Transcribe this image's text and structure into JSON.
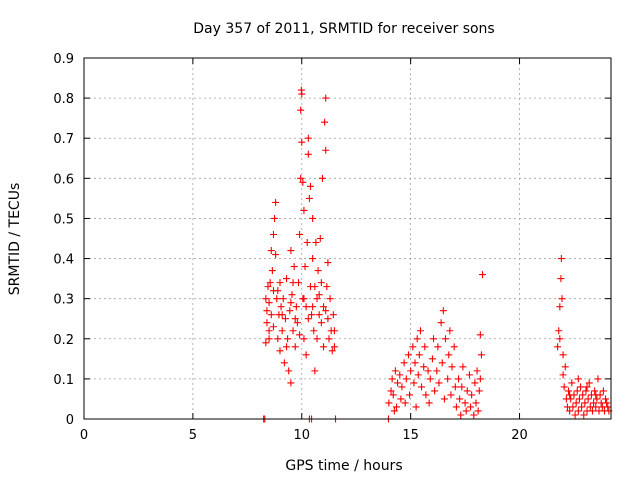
{
  "chart_data": {
    "type": "scatter",
    "title": "Day 357 of 2011, SRMTID for receiver sons",
    "xlabel": "GPS time / hours",
    "ylabel": "SRMTID / TECUs",
    "xlim": [
      0,
      24.2
    ],
    "ylim": [
      0,
      0.9
    ],
    "xticks": [
      0,
      5,
      10,
      15,
      20
    ],
    "xtick_labels": [
      "0",
      "5",
      "10",
      "15",
      "20"
    ],
    "yticks": [
      0,
      0.1,
      0.2,
      0.3,
      0.4,
      0.5,
      0.6,
      0.7,
      0.8,
      0.9
    ],
    "ytick_labels": [
      "0",
      "0.1",
      "0.2",
      "0.3",
      "0.4",
      "0.5",
      "0.6",
      "0.7",
      "0.8",
      "0.9"
    ],
    "grid": true,
    "marker": "plus",
    "colors": {
      "marker": "#ff0000",
      "grid": "#a0a0a0",
      "axes": "#000000"
    },
    "series": [
      {
        "name": "SRMTID",
        "points": [
          [
            8.25,
            0.0
          ],
          [
            8.3,
            0.0
          ],
          [
            10.35,
            0.0
          ],
          [
            10.45,
            0.0
          ],
          [
            11.55,
            0.0
          ],
          [
            13.98,
            0.0
          ],
          [
            8.35,
            0.19
          ],
          [
            8.35,
            0.3
          ],
          [
            8.4,
            0.27
          ],
          [
            8.4,
            0.24
          ],
          [
            8.45,
            0.33
          ],
          [
            8.5,
            0.29
          ],
          [
            8.5,
            0.22
          ],
          [
            8.55,
            0.34
          ],
          [
            8.6,
            0.42
          ],
          [
            8.6,
            0.26
          ],
          [
            8.65,
            0.37
          ],
          [
            8.7,
            0.46
          ],
          [
            8.7,
            0.32
          ],
          [
            8.75,
            0.5
          ],
          [
            8.8,
            0.54
          ],
          [
            8.8,
            0.41
          ],
          [
            8.85,
            0.3
          ],
          [
            8.9,
            0.2
          ],
          [
            8.95,
            0.26
          ],
          [
            9.0,
            0.34
          ],
          [
            9.0,
            0.17
          ],
          [
            9.05,
            0.28
          ],
          [
            9.1,
            0.22
          ],
          [
            9.15,
            0.3
          ],
          [
            9.2,
            0.14
          ],
          [
            9.25,
            0.25
          ],
          [
            9.3,
            0.35
          ],
          [
            9.35,
            0.2
          ],
          [
            9.4,
            0.12
          ],
          [
            9.45,
            0.27
          ],
          [
            9.5,
            0.42
          ],
          [
            9.5,
            0.09
          ],
          [
            9.55,
            0.31
          ],
          [
            9.6,
            0.22
          ],
          [
            9.65,
            0.38
          ],
          [
            9.7,
            0.18
          ],
          [
            9.75,
            0.28
          ],
          [
            9.8,
            0.24
          ],
          [
            9.85,
            0.34
          ],
          [
            9.9,
            0.46
          ],
          [
            9.95,
            0.6
          ],
          [
            9.95,
            0.77
          ],
          [
            9.98,
            0.82
          ],
          [
            10.0,
            0.81
          ],
          [
            10.0,
            0.69
          ],
          [
            10.05,
            0.59
          ],
          [
            10.05,
            0.3
          ],
          [
            10.1,
            0.52
          ],
          [
            10.1,
            0.2
          ],
          [
            10.15,
            0.38
          ],
          [
            10.2,
            0.28
          ],
          [
            10.2,
            0.16
          ],
          [
            10.25,
            0.44
          ],
          [
            10.3,
            0.66
          ],
          [
            10.3,
            0.7
          ],
          [
            10.35,
            0.55
          ],
          [
            10.4,
            0.58
          ],
          [
            10.4,
            0.33
          ],
          [
            10.45,
            0.26
          ],
          [
            10.5,
            0.4
          ],
          [
            10.5,
            0.5
          ],
          [
            10.55,
            0.22
          ],
          [
            10.6,
            0.33
          ],
          [
            10.6,
            0.12
          ],
          [
            10.65,
            0.44
          ],
          [
            10.7,
            0.3
          ],
          [
            10.75,
            0.37
          ],
          [
            10.8,
            0.26
          ],
          [
            10.85,
            0.45
          ],
          [
            10.9,
            0.34
          ],
          [
            10.95,
            0.6
          ],
          [
            11.0,
            0.18
          ],
          [
            11.0,
            0.28
          ],
          [
            11.05,
            0.74
          ],
          [
            11.1,
            0.8
          ],
          [
            11.1,
            0.67
          ],
          [
            11.15,
            0.33
          ],
          [
            11.2,
            0.39
          ],
          [
            11.2,
            0.25
          ],
          [
            11.25,
            0.2
          ],
          [
            11.3,
            0.3
          ],
          [
            11.35,
            0.22
          ],
          [
            11.4,
            0.17
          ],
          [
            11.45,
            0.26
          ],
          [
            11.5,
            0.22
          ],
          [
            11.5,
            0.18
          ],
          [
            8.5,
            0.2
          ],
          [
            8.7,
            0.23
          ],
          [
            8.9,
            0.32
          ],
          [
            9.1,
            0.26
          ],
          [
            9.3,
            0.18
          ],
          [
            9.5,
            0.29
          ],
          [
            9.7,
            0.25
          ],
          [
            9.9,
            0.21
          ],
          [
            10.1,
            0.3
          ],
          [
            10.3,
            0.25
          ],
          [
            10.5,
            0.28
          ],
          [
            10.7,
            0.2
          ],
          [
            10.9,
            0.24
          ],
          [
            11.1,
            0.27
          ],
          [
            9.6,
            0.34
          ],
          [
            10.8,
            0.31
          ],
          [
            14.0,
            0.04
          ],
          [
            14.1,
            0.07
          ],
          [
            14.15,
            0.1
          ],
          [
            14.2,
            0.06
          ],
          [
            14.3,
            0.12
          ],
          [
            14.35,
            0.03
          ],
          [
            14.4,
            0.09
          ],
          [
            14.5,
            0.11
          ],
          [
            14.55,
            0.05
          ],
          [
            14.6,
            0.08
          ],
          [
            14.7,
            0.14
          ],
          [
            14.75,
            0.04
          ],
          [
            14.8,
            0.1
          ],
          [
            14.9,
            0.16
          ],
          [
            14.95,
            0.06
          ],
          [
            15.0,
            0.12
          ],
          [
            15.1,
            0.18
          ],
          [
            15.15,
            0.09
          ],
          [
            15.2,
            0.14
          ],
          [
            15.3,
            0.2
          ],
          [
            15.35,
            0.11
          ],
          [
            15.4,
            0.16
          ],
          [
            15.45,
            0.22
          ],
          [
            15.5,
            0.08
          ],
          [
            15.6,
            0.13
          ],
          [
            15.65,
            0.18
          ],
          [
            15.7,
            0.06
          ],
          [
            15.8,
            0.12
          ],
          [
            15.85,
            0.04
          ],
          [
            15.9,
            0.1
          ],
          [
            16.0,
            0.15
          ],
          [
            16.05,
            0.2
          ],
          [
            16.1,
            0.07
          ],
          [
            16.2,
            0.12
          ],
          [
            16.25,
            0.18
          ],
          [
            16.3,
            0.09
          ],
          [
            16.4,
            0.24
          ],
          [
            16.45,
            0.14
          ],
          [
            16.5,
            0.27
          ],
          [
            16.55,
            0.05
          ],
          [
            16.6,
            0.2
          ],
          [
            16.7,
            0.1
          ],
          [
            16.75,
            0.16
          ],
          [
            16.8,
            0.22
          ],
          [
            16.85,
            0.06
          ],
          [
            16.9,
            0.13
          ],
          [
            17.0,
            0.18
          ],
          [
            17.05,
            0.08
          ],
          [
            17.1,
            0.03
          ],
          [
            17.2,
            0.1
          ],
          [
            17.25,
            0.05
          ],
          [
            17.3,
            0.01
          ],
          [
            17.35,
            0.08
          ],
          [
            17.4,
            0.13
          ],
          [
            17.5,
            0.04
          ],
          [
            17.55,
            0.02
          ],
          [
            17.6,
            0.07
          ],
          [
            17.7,
            0.11
          ],
          [
            17.75,
            0.03
          ],
          [
            17.8,
            0.06
          ],
          [
            17.9,
            0.01
          ],
          [
            17.95,
            0.09
          ],
          [
            18.0,
            0.04
          ],
          [
            18.05,
            0.12
          ],
          [
            18.1,
            0.02
          ],
          [
            18.15,
            0.07
          ],
          [
            18.2,
            0.1
          ],
          [
            18.25,
            0.16
          ],
          [
            18.3,
            0.36
          ],
          [
            18.2,
            0.21
          ],
          [
            14.25,
            0.02
          ],
          [
            15.25,
            0.03
          ],
          [
            21.75,
            0.18
          ],
          [
            21.8,
            0.22
          ],
          [
            21.85,
            0.28
          ],
          [
            21.9,
            0.35
          ],
          [
            21.92,
            0.4
          ],
          [
            21.95,
            0.3
          ],
          [
            22.0,
            0.16
          ],
          [
            22.0,
            0.11
          ],
          [
            22.05,
            0.08
          ],
          [
            22.1,
            0.13
          ],
          [
            22.15,
            0.05
          ],
          [
            22.2,
            0.03
          ],
          [
            22.25,
            0.07
          ],
          [
            22.3,
            0.02
          ],
          [
            22.35,
            0.05
          ],
          [
            22.4,
            0.09
          ],
          [
            22.45,
            0.03
          ],
          [
            22.5,
            0.06
          ],
          [
            22.55,
            0.01
          ],
          [
            22.6,
            0.04
          ],
          [
            22.65,
            0.07
          ],
          [
            22.7,
            0.02
          ],
          [
            22.75,
            0.05
          ],
          [
            22.8,
            0.08
          ],
          [
            22.85,
            0.03
          ],
          [
            22.9,
            0.06
          ],
          [
            22.95,
            0.01
          ],
          [
            23.0,
            0.04
          ],
          [
            23.05,
            0.07
          ],
          [
            23.1,
            0.02
          ],
          [
            23.15,
            0.05
          ],
          [
            23.2,
            0.09
          ],
          [
            23.25,
            0.03
          ],
          [
            23.3,
            0.06
          ],
          [
            23.35,
            0.02
          ],
          [
            23.4,
            0.04
          ],
          [
            23.45,
            0.07
          ],
          [
            23.5,
            0.03
          ],
          [
            23.55,
            0.05
          ],
          [
            23.6,
            0.1
          ],
          [
            23.65,
            0.02
          ],
          [
            23.7,
            0.06
          ],
          [
            23.75,
            0.04
          ],
          [
            23.8,
            0.03
          ],
          [
            23.85,
            0.07
          ],
          [
            23.9,
            0.02
          ],
          [
            23.95,
            0.05
          ],
          [
            24.0,
            0.04
          ],
          [
            24.05,
            0.03
          ],
          [
            24.1,
            0.02
          ],
          [
            22.3,
            0.06
          ],
          [
            22.7,
            0.1
          ],
          [
            23.1,
            0.08
          ],
          [
            23.5,
            0.06
          ],
          [
            21.85,
            0.2
          ]
        ]
      }
    ]
  }
}
